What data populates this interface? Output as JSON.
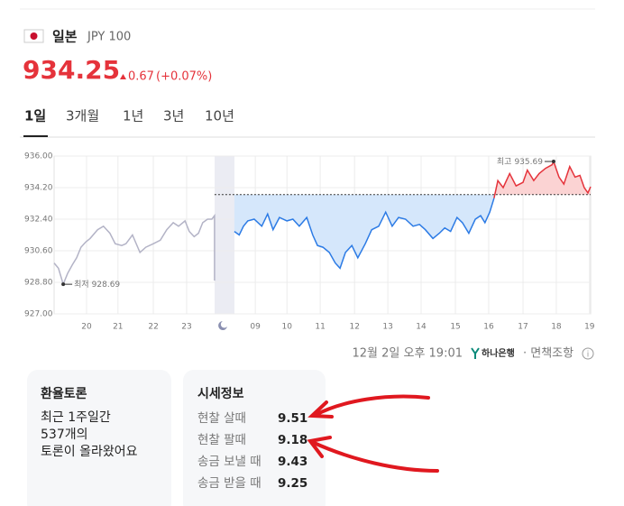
{
  "header": {
    "country": "일본",
    "currency": "JPY 100",
    "price": 934.25,
    "change": 0.67,
    "change_pct": "(+0.07%)"
  },
  "tabs": [
    "1일",
    "3개월",
    "1년",
    "3년",
    "10년"
  ],
  "chart_data": {
    "type": "line",
    "xlim": [
      0,
      100
    ],
    "ylim": [
      927,
      936
    ],
    "yticks": [
      {
        "value": 927,
        "label": "927.00"
      },
      {
        "value": 928.8,
        "label": "928.80"
      },
      {
        "value": 930.6,
        "label": "930.60"
      },
      {
        "value": 932.4,
        "label": "932.40"
      },
      {
        "value": 934.2,
        "label": "934.20"
      },
      {
        "value": 936,
        "label": "936.00"
      }
    ],
    "xticks": [
      6.05,
      11.9,
      18.5,
      24.7,
      37.5,
      43.4,
      49.6,
      56.0,
      62.2,
      68.4,
      74.8,
      81.0,
      87.4,
      93.6,
      99.8
    ],
    "xtick_labels": [
      "20",
      "21",
      "22",
      "23",
      "09",
      "10",
      "11",
      "12",
      "13",
      "14",
      "15",
      "16",
      "17",
      "18",
      "19"
    ],
    "baseline": 933.8,
    "grid": true,
    "series": [
      {
        "color": "#b3b3c6",
        "x": [
          0,
          0.8,
          1.7,
          2.5,
          3.4,
          4.2,
          5.0,
          5.9,
          6.7,
          8.1,
          9.2,
          10.4,
          11.4,
          12.6,
          13.4,
          14.6,
          16.0,
          17.1,
          18.5,
          19.8,
          21.0,
          22.2,
          23.2,
          24.4,
          25.2,
          26.1,
          26.9,
          27.7,
          28.6,
          29.4,
          29.9,
          29.9
        ],
        "values": [
          929.9,
          929.6,
          928.69,
          929.3,
          929.8,
          930.2,
          930.8,
          931.1,
          931.3,
          931.8,
          932.0,
          931.6,
          931.0,
          930.9,
          931.0,
          931.5,
          930.5,
          930.8,
          931.0,
          931.2,
          931.8,
          932.2,
          932.0,
          932.3,
          931.7,
          931.4,
          931.6,
          932.2,
          932.4,
          932.4,
          932.6,
          928.9
        ]
      },
      {
        "color": "#2c7be5",
        "fill": "#d5e7fb",
        "x": [
          33.6,
          34.5,
          35.3,
          36.1,
          37.3,
          38.7,
          39.8,
          40.8,
          42.0,
          43.4,
          44.5,
          45.7,
          47.1,
          48.2,
          49.1,
          50.1,
          51.3,
          52.4,
          53.3,
          54.3,
          55.5,
          56.6,
          58.0,
          59.2,
          60.5,
          61.8,
          63.0,
          64.2,
          65.5,
          66.9,
          68.1,
          69.2,
          70.6,
          71.8,
          72.8,
          73.9,
          75.1,
          76.1,
          77.3,
          78.5,
          79.5,
          80.3,
          81.2,
          82.0
        ],
        "values": [
          931.7,
          931.5,
          932.0,
          932.3,
          932.4,
          932.0,
          932.7,
          931.8,
          932.5,
          932.3,
          932.4,
          932.0,
          932.5,
          931.5,
          930.9,
          930.8,
          930.5,
          929.9,
          929.6,
          930.5,
          930.9,
          930.2,
          931.0,
          931.8,
          932.0,
          932.8,
          932.0,
          932.5,
          932.4,
          932.0,
          932.1,
          931.8,
          931.3,
          931.6,
          931.9,
          931.7,
          932.5,
          932.2,
          931.6,
          932.4,
          932.6,
          932.2,
          932.8,
          933.6
        ]
      },
      {
        "color": "#e5333b",
        "fill": "#fbd3d3",
        "x": [
          82.0,
          82.7,
          83.7,
          84.9,
          86.1,
          87.4,
          88.2,
          89.4,
          90.4,
          91.6,
          92.8,
          93.1,
          94.1,
          95.0,
          96.1,
          97.1,
          98.0,
          98.8,
          99.5,
          100
        ],
        "values": [
          933.6,
          934.6,
          934.2,
          935.0,
          934.3,
          934.5,
          935.2,
          934.6,
          935.0,
          935.3,
          935.5,
          935.69,
          934.8,
          934.4,
          935.4,
          934.8,
          934.9,
          934.2,
          933.9,
          934.25
        ]
      }
    ],
    "annotations": [
      {
        "label": "최저",
        "value": 928.69,
        "x": 1.7
      },
      {
        "label": "최고",
        "value": 935.69,
        "x": 93.1
      }
    ]
  },
  "footer": {
    "timestamp": "12월 2일 오후 19:01",
    "bank": "하나은행",
    "disclaimer": "· 면책조항"
  },
  "discussion": {
    "title": "환율토론",
    "lines": [
      "최근 1주일간",
      "537개의",
      "토론이 올라왔어요"
    ]
  },
  "quotes": {
    "title": "시세정보",
    "rows": [
      [
        "현찰 살때",
        "9.51"
      ],
      [
        "현찰 팔때",
        "9.18"
      ],
      [
        "송금 보낼 때",
        "9.43"
      ],
      [
        "송금 받을 때",
        "9.25"
      ]
    ]
  }
}
